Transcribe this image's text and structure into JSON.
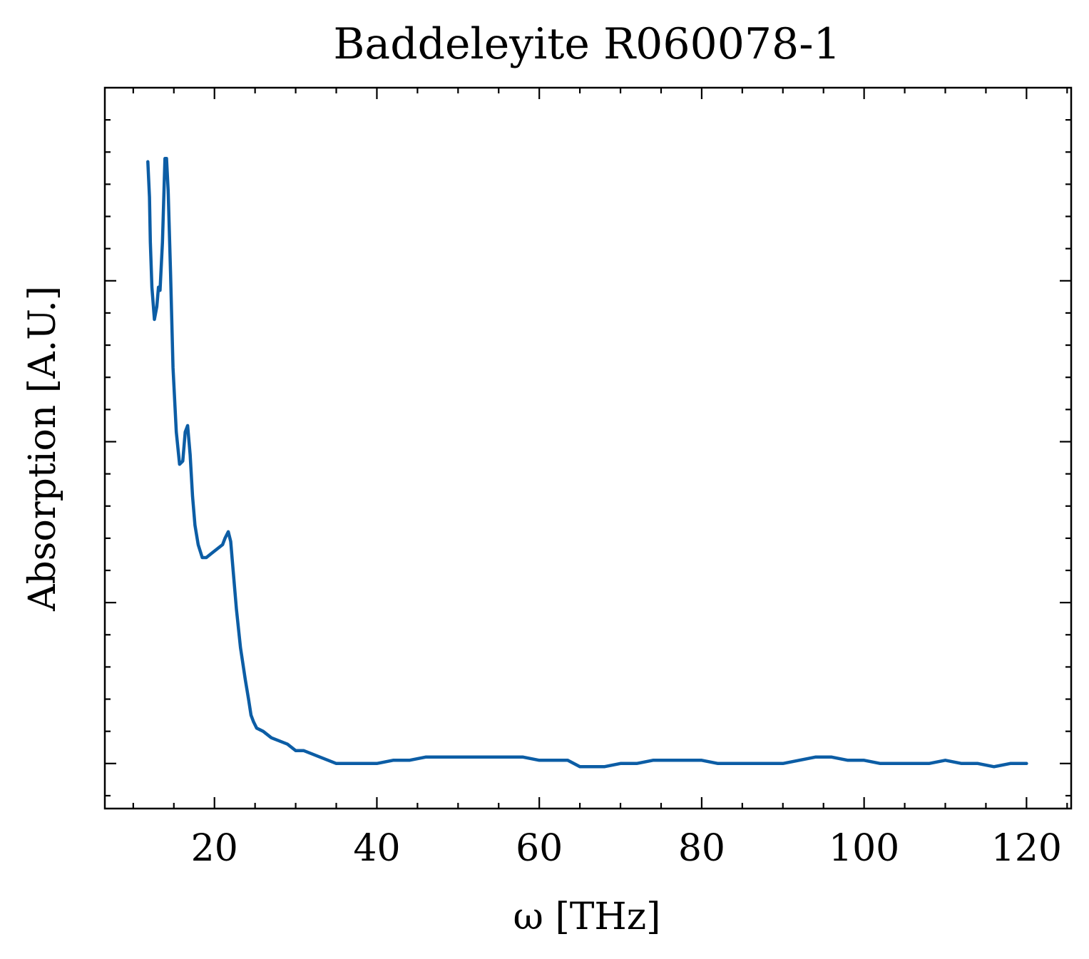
{
  "chart_data": {
    "type": "line",
    "title": "Baddeleyite R060078-1",
    "xlabel": "ω [THz]",
    "ylabel": "Absorption [A.U.]",
    "xlim": [
      6.5,
      125.5
    ],
    "ylim": [
      -0.14,
      2.1
    ],
    "x_ticks": [
      20,
      40,
      60,
      80,
      100,
      120
    ],
    "x_tick_labels": [
      "20",
      "40",
      "60",
      "80",
      "100",
      "120"
    ],
    "y_major_ticks": [
      0.0,
      0.5,
      1.0,
      1.5
    ],
    "y_tick_labels_shown": false,
    "grid": false,
    "line_color": "#0C5DA5",
    "series": [
      {
        "x": [
          11.8,
          12.0,
          12.1,
          12.3,
          12.6,
          12.9,
          13.1,
          13.3,
          13.6,
          13.9,
          14.1,
          14.3,
          14.6,
          14.9,
          15.3,
          15.7,
          16.1,
          16.4,
          16.7,
          17.0,
          17.3,
          17.6,
          18.0,
          18.5,
          19.0,
          19.5,
          20.0,
          20.5,
          21.0,
          21.3,
          21.7,
          22.0,
          22.3,
          22.7,
          23.2,
          23.8,
          24.2,
          24.5,
          24.8,
          25.2,
          26.0,
          27.0,
          28.0,
          29.0,
          30.0,
          31.0,
          32.0,
          33.0,
          34.0,
          35.0,
          36.5,
          38.0,
          40.0,
          42.0,
          44.0,
          46.0,
          48.0,
          50.0,
          52.0,
          54.0,
          56.0,
          58.0,
          60.0,
          62.0,
          63.5,
          65.0,
          66.0,
          68.0,
          70.0,
          72.0,
          74.0,
          76.0,
          78.0,
          80.0,
          82.0,
          84.0,
          86.0,
          88.0,
          90.0,
          92.0,
          94.0,
          96.0,
          98.0,
          100.0,
          102.0,
          104.0,
          106.0,
          108.0,
          110.0,
          112.0,
          114.0,
          116.0,
          118.0,
          120.0
        ],
        "y": [
          1.87,
          1.76,
          1.62,
          1.48,
          1.38,
          1.42,
          1.48,
          1.47,
          1.62,
          1.88,
          1.88,
          1.78,
          1.52,
          1.23,
          1.03,
          0.93,
          0.94,
          1.03,
          1.05,
          0.96,
          0.83,
          0.74,
          0.68,
          0.64,
          0.64,
          0.65,
          0.66,
          0.67,
          0.68,
          0.7,
          0.72,
          0.69,
          0.6,
          0.48,
          0.36,
          0.26,
          0.2,
          0.15,
          0.13,
          0.11,
          0.1,
          0.08,
          0.07,
          0.06,
          0.04,
          0.04,
          0.03,
          0.02,
          0.01,
          0.0,
          0.0,
          0.0,
          0.0,
          0.01,
          0.01,
          0.02,
          0.02,
          0.02,
          0.02,
          0.02,
          0.02,
          0.02,
          0.01,
          0.01,
          0.01,
          -0.01,
          -0.01,
          -0.01,
          0.0,
          0.0,
          0.01,
          0.01,
          0.01,
          0.01,
          0.0,
          0.0,
          0.0,
          0.0,
          0.0,
          0.01,
          0.02,
          0.02,
          0.01,
          0.01,
          0.0,
          0.0,
          0.0,
          0.0,
          0.01,
          0.0,
          0.0,
          -0.01,
          0.0,
          0.0
        ]
      }
    ]
  }
}
